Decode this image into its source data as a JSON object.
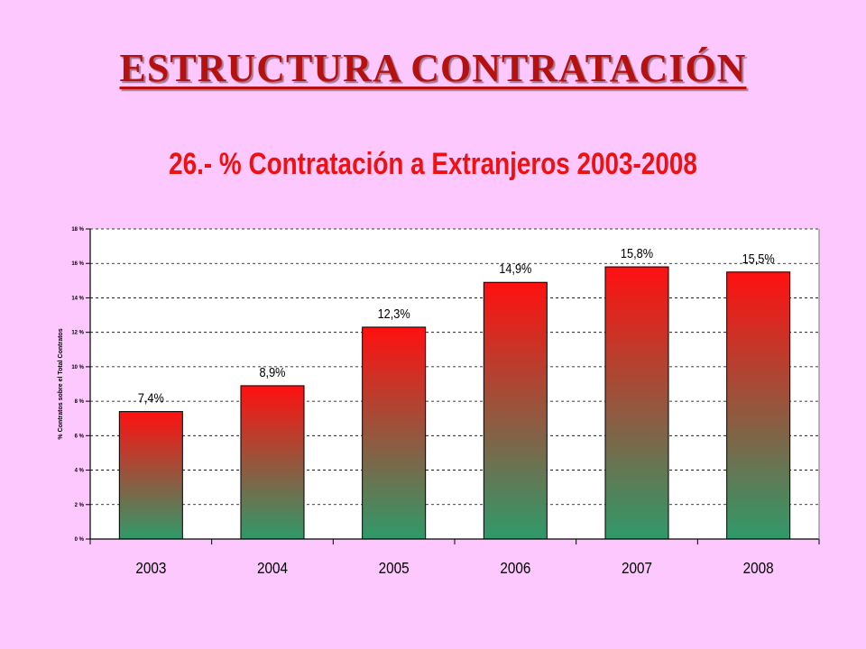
{
  "slide": {
    "title": "ESTRUCTURA CONTRATACIÓN"
  },
  "chart_data": {
    "type": "bar",
    "title": "26.- % Contratación a Extranjeros 2003-2008",
    "xlabel": "",
    "ylabel": "% Contratos sobre el Total Contratos",
    "categories": [
      "2003",
      "2004",
      "2005",
      "2006",
      "2007",
      "2008"
    ],
    "values": [
      7.4,
      8.9,
      12.3,
      14.9,
      15.8,
      15.5
    ],
    "data_labels": [
      "7,4%",
      "8,9%",
      "12,3%",
      "14,9%",
      "15,8%",
      "15,5%"
    ],
    "ylim": [
      0,
      18
    ],
    "yticks": [
      0,
      2,
      4,
      6,
      8,
      10,
      12,
      14,
      16,
      18
    ],
    "ytick_labels": [
      "0 %",
      "2 %",
      "4 %",
      "6 %",
      "8 %",
      "10 %",
      "12 %",
      "14 %",
      "16 %",
      "18 %"
    ],
    "grid": true,
    "legend": "none",
    "colors": {
      "bar_top": "#ff1010",
      "bar_bottom": "#2f9a6a",
      "plot_background": "#ffffff",
      "grid": "#000000",
      "title": "#ee1111"
    }
  }
}
